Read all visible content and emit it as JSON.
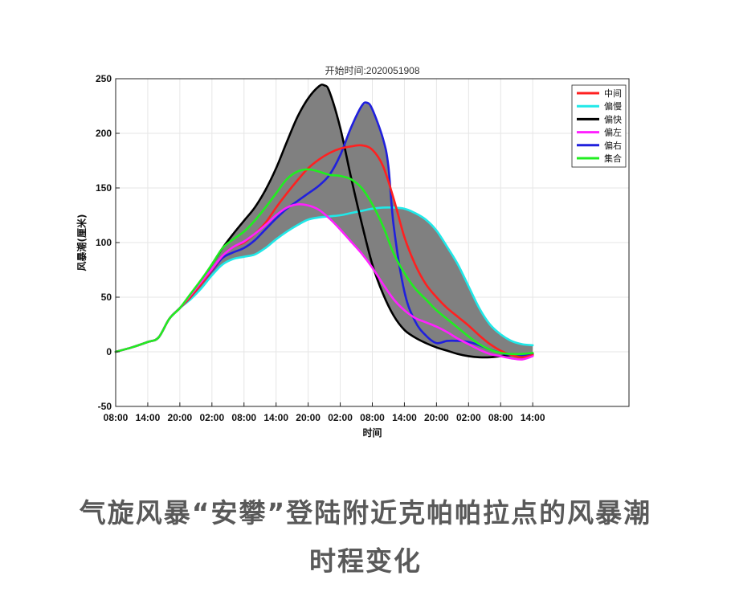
{
  "caption": {
    "line1": "气旋风暴“安攀”登陆附近克帕帕拉点的风暴潮",
    "line2": "时程变化"
  },
  "chart_data": {
    "type": "line",
    "title": "开始时间:2020051908",
    "xlabel": "时间",
    "ylabel": "风暴潮(厘米)",
    "ylim": [
      -50,
      250
    ],
    "xlim": [
      0,
      96
    ],
    "yticks": [
      -50,
      0,
      50,
      100,
      150,
      200,
      250
    ],
    "xticks": [
      {
        "x": 0,
        "label": "08:00"
      },
      {
        "x": 6,
        "label": "14:00"
      },
      {
        "x": 12,
        "label": "20:00"
      },
      {
        "x": 18,
        "label": "02:00"
      },
      {
        "x": 24,
        "label": "08:00"
      },
      {
        "x": 30,
        "label": "14:00"
      },
      {
        "x": 36,
        "label": "20:00"
      },
      {
        "x": 42,
        "label": "02:00"
      },
      {
        "x": 48,
        "label": "08:00"
      },
      {
        "x": 54,
        "label": "14:00"
      },
      {
        "x": 60,
        "label": "20:00"
      },
      {
        "x": 66,
        "label": "02:00"
      },
      {
        "x": 72,
        "label": "08:00"
      },
      {
        "x": 78,
        "label": "14:00"
      }
    ],
    "grid": true,
    "legend_position": "top-right",
    "envelope_color": "#808080",
    "series": [
      {
        "name": "中间",
        "color": "#ff2020",
        "points": [
          [
            0,
            0
          ],
          [
            3,
            4
          ],
          [
            6,
            9
          ],
          [
            8,
            13
          ],
          [
            10,
            30
          ],
          [
            12,
            40
          ],
          [
            14,
            50
          ],
          [
            16,
            62
          ],
          [
            18,
            75
          ],
          [
            20,
            88
          ],
          [
            22,
            96
          ],
          [
            24,
            100
          ],
          [
            26,
            108
          ],
          [
            28,
            118
          ],
          [
            30,
            132
          ],
          [
            32,
            145
          ],
          [
            34,
            157
          ],
          [
            36,
            168
          ],
          [
            38,
            176
          ],
          [
            40,
            182
          ],
          [
            42,
            186
          ],
          [
            44,
            188
          ],
          [
            46,
            189
          ],
          [
            48,
            185
          ],
          [
            50,
            170
          ],
          [
            52,
            140
          ],
          [
            54,
            105
          ],
          [
            56,
            80
          ],
          [
            58,
            62
          ],
          [
            60,
            50
          ],
          [
            62,
            40
          ],
          [
            64,
            32
          ],
          [
            66,
            24
          ],
          [
            68,
            15
          ],
          [
            70,
            7
          ],
          [
            72,
            1
          ],
          [
            74,
            -3
          ],
          [
            76,
            -5
          ],
          [
            78,
            -3
          ]
        ]
      },
      {
        "name": "偏慢",
        "color": "#20e8e8",
        "points": [
          [
            0,
            0
          ],
          [
            3,
            4
          ],
          [
            6,
            9
          ],
          [
            8,
            13
          ],
          [
            10,
            30
          ],
          [
            12,
            40
          ],
          [
            14,
            48
          ],
          [
            16,
            58
          ],
          [
            18,
            70
          ],
          [
            20,
            80
          ],
          [
            22,
            85
          ],
          [
            24,
            87
          ],
          [
            26,
            89
          ],
          [
            28,
            95
          ],
          [
            30,
            103
          ],
          [
            32,
            110
          ],
          [
            34,
            116
          ],
          [
            36,
            121
          ],
          [
            38,
            123
          ],
          [
            40,
            124
          ],
          [
            42,
            125
          ],
          [
            44,
            127
          ],
          [
            46,
            129
          ],
          [
            48,
            131
          ],
          [
            50,
            132
          ],
          [
            52,
            132
          ],
          [
            54,
            131
          ],
          [
            56,
            127
          ],
          [
            58,
            121
          ],
          [
            60,
            111
          ],
          [
            62,
            96
          ],
          [
            64,
            80
          ],
          [
            66,
            60
          ],
          [
            68,
            40
          ],
          [
            70,
            25
          ],
          [
            72,
            16
          ],
          [
            74,
            10
          ],
          [
            76,
            7
          ],
          [
            78,
            6
          ]
        ]
      },
      {
        "name": "偏快",
        "color": "#000000",
        "points": [
          [
            0,
            0
          ],
          [
            3,
            4
          ],
          [
            6,
            9
          ],
          [
            8,
            13
          ],
          [
            10,
            30
          ],
          [
            12,
            40
          ],
          [
            14,
            51
          ],
          [
            16,
            65
          ],
          [
            18,
            80
          ],
          [
            20,
            95
          ],
          [
            22,
            108
          ],
          [
            24,
            120
          ],
          [
            26,
            132
          ],
          [
            28,
            148
          ],
          [
            30,
            168
          ],
          [
            32,
            192
          ],
          [
            34,
            215
          ],
          [
            36,
            232
          ],
          [
            38,
            243
          ],
          [
            39,
            244
          ],
          [
            40,
            238
          ],
          [
            42,
            205
          ],
          [
            44,
            160
          ],
          [
            46,
            118
          ],
          [
            48,
            80
          ],
          [
            50,
            53
          ],
          [
            52,
            33
          ],
          [
            54,
            20
          ],
          [
            56,
            13
          ],
          [
            58,
            8
          ],
          [
            60,
            4
          ],
          [
            62,
            1
          ],
          [
            64,
            -2
          ],
          [
            66,
            -4
          ],
          [
            68,
            -5
          ],
          [
            70,
            -5
          ],
          [
            72,
            -4
          ],
          [
            74,
            -3
          ],
          [
            76,
            -3
          ],
          [
            78,
            -2
          ]
        ]
      },
      {
        "name": "偏左",
        "color": "#ff20ff",
        "points": [
          [
            0,
            0
          ],
          [
            3,
            4
          ],
          [
            6,
            9
          ],
          [
            8,
            13
          ],
          [
            10,
            30
          ],
          [
            12,
            40
          ],
          [
            14,
            52
          ],
          [
            16,
            64
          ],
          [
            18,
            76
          ],
          [
            20,
            88
          ],
          [
            22,
            96
          ],
          [
            24,
            101
          ],
          [
            26,
            108
          ],
          [
            28,
            116
          ],
          [
            30,
            125
          ],
          [
            32,
            132
          ],
          [
            34,
            135
          ],
          [
            36,
            134
          ],
          [
            38,
            130
          ],
          [
            40,
            122
          ],
          [
            42,
            112
          ],
          [
            44,
            101
          ],
          [
            46,
            90
          ],
          [
            48,
            77
          ],
          [
            50,
            62
          ],
          [
            52,
            48
          ],
          [
            54,
            38
          ],
          [
            56,
            31
          ],
          [
            58,
            27
          ],
          [
            60,
            23
          ],
          [
            62,
            18
          ],
          [
            64,
            12
          ],
          [
            66,
            7
          ],
          [
            68,
            2
          ],
          [
            70,
            -2
          ],
          [
            72,
            -4
          ],
          [
            74,
            -6
          ],
          [
            76,
            -7
          ],
          [
            78,
            -4
          ]
        ]
      },
      {
        "name": "偏右",
        "color": "#2020dd",
        "points": [
          [
            0,
            0
          ],
          [
            3,
            4
          ],
          [
            6,
            9
          ],
          [
            8,
            13
          ],
          [
            10,
            30
          ],
          [
            12,
            40
          ],
          [
            14,
            50
          ],
          [
            16,
            62
          ],
          [
            18,
            74
          ],
          [
            20,
            86
          ],
          [
            22,
            91
          ],
          [
            24,
            95
          ],
          [
            26,
            102
          ],
          [
            28,
            112
          ],
          [
            30,
            122
          ],
          [
            32,
            131
          ],
          [
            34,
            138
          ],
          [
            36,
            145
          ],
          [
            38,
            152
          ],
          [
            40,
            162
          ],
          [
            42,
            180
          ],
          [
            44,
            205
          ],
          [
            46,
            225
          ],
          [
            47,
            228
          ],
          [
            48,
            222
          ],
          [
            50,
            195
          ],
          [
            51,
            170
          ],
          [
            52,
            115
          ],
          [
            54,
            55
          ],
          [
            56,
            28
          ],
          [
            58,
            15
          ],
          [
            60,
            8
          ],
          [
            62,
            10
          ],
          [
            64,
            10
          ],
          [
            66,
            9
          ],
          [
            68,
            6
          ],
          [
            70,
            2
          ],
          [
            72,
            -1
          ],
          [
            74,
            -3
          ],
          [
            76,
            -3
          ],
          [
            78,
            -3
          ]
        ]
      },
      {
        "name": "集合",
        "color": "#20ee20",
        "points": [
          [
            0,
            0
          ],
          [
            3,
            4
          ],
          [
            6,
            9
          ],
          [
            8,
            13
          ],
          [
            10,
            30
          ],
          [
            12,
            40
          ],
          [
            14,
            53
          ],
          [
            16,
            66
          ],
          [
            18,
            80
          ],
          [
            20,
            95
          ],
          [
            22,
            103
          ],
          [
            24,
            110
          ],
          [
            26,
            120
          ],
          [
            28,
            132
          ],
          [
            30,
            145
          ],
          [
            32,
            158
          ],
          [
            34,
            165
          ],
          [
            36,
            167
          ],
          [
            38,
            165
          ],
          [
            40,
            162
          ],
          [
            42,
            161
          ],
          [
            44,
            158
          ],
          [
            46,
            150
          ],
          [
            48,
            135
          ],
          [
            50,
            115
          ],
          [
            52,
            90
          ],
          [
            54,
            72
          ],
          [
            56,
            58
          ],
          [
            58,
            48
          ],
          [
            60,
            38
          ],
          [
            62,
            30
          ],
          [
            64,
            22
          ],
          [
            66,
            14
          ],
          [
            68,
            7
          ],
          [
            70,
            2
          ],
          [
            72,
            -1
          ],
          [
            74,
            -2
          ],
          [
            76,
            -2
          ],
          [
            78,
            -1
          ]
        ]
      }
    ]
  }
}
